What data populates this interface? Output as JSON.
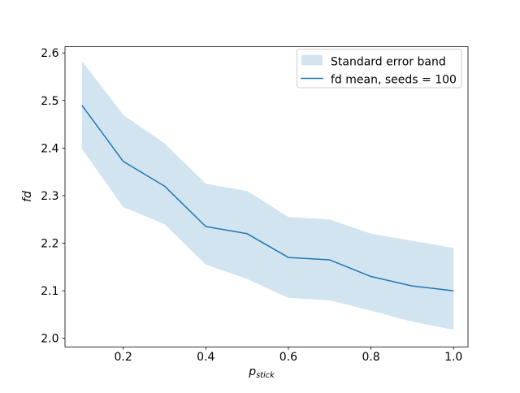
{
  "figure": {
    "background": "#ffffff",
    "axis_color": "#000000",
    "legend_border_color": "#cccccc"
  },
  "chart_data": {
    "type": "line",
    "title": "",
    "xlabel": {
      "base": "p",
      "sub": "stick"
    },
    "ylabel": "fd",
    "grid": false,
    "x": [
      0.1,
      0.2,
      0.3,
      0.4,
      0.5,
      0.6,
      0.7,
      0.8,
      0.9,
      1.0
    ],
    "series": [
      {
        "name": "fd mean, seeds = 100",
        "values": [
          2.49,
          2.372,
          2.32,
          2.235,
          2.22,
          2.17,
          2.165,
          2.13,
          2.11,
          2.1
        ],
        "color": "#1f77b4",
        "linewidth": 1.5
      }
    ],
    "band": {
      "name": "Standard error band",
      "upper": [
        2.583,
        2.47,
        2.41,
        2.325,
        2.31,
        2.255,
        2.25,
        2.22,
        2.205,
        2.19
      ],
      "lower": [
        2.398,
        2.276,
        2.24,
        2.155,
        2.125,
        2.085,
        2.08,
        2.058,
        2.035,
        2.018
      ],
      "color": "#1f77b4",
      "opacity": 0.2
    },
    "xlim": [
      0.059,
      1.035
    ],
    "ylim": [
      1.982,
      2.613
    ],
    "xticks": {
      "values": [
        0.2,
        0.4,
        0.6,
        0.8,
        1.0
      ],
      "labels": [
        "0.2",
        "0.4",
        "0.6",
        "0.8",
        "1.0"
      ]
    },
    "yticks": {
      "values": [
        2.0,
        2.1,
        2.2,
        2.3,
        2.4,
        2.5,
        2.6
      ],
      "labels": [
        "2.0",
        "2.1",
        "2.2",
        "2.3",
        "2.4",
        "2.5",
        "2.6"
      ]
    },
    "legend": {
      "position": "upper right",
      "entries": [
        {
          "type": "patch",
          "label": "Standard error band"
        },
        {
          "type": "line",
          "label": "fd mean, seeds = 100"
        }
      ]
    }
  }
}
